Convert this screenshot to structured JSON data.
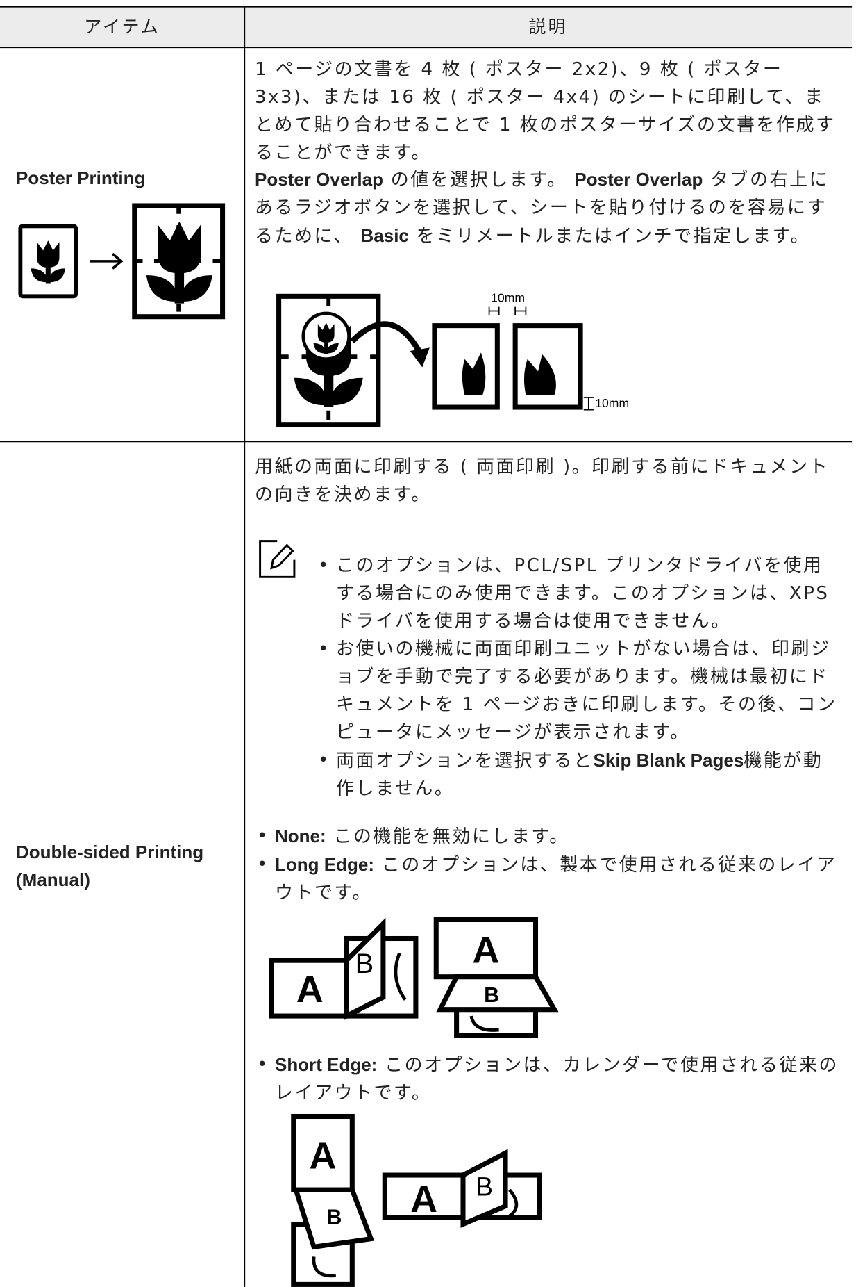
{
  "table": {
    "headers": [
      "アイテム",
      "説明"
    ],
    "rows": [
      {
        "item": "Poster Printing",
        "description": [
          [
            {
              "text": "1 ページの文書を 4 枚 ( ポスター 2x2)、9 枚 ( ポスター 3x3)、または 16 枚 ( ポスター 4x4) のシートに印刷して、まとめて貼り合わせることで 1 枚のポスターサイズの文書を作成することができます。",
              "bold": false
            }
          ],
          [
            {
              "text": "Poster Overlap",
              "bold": true
            },
            {
              "text": " の値を選択します。 ",
              "bold": false
            },
            {
              "text": "Poster Overlap",
              "bold": true
            },
            {
              "text": " タブの右上にあるラジオボタンを選択して、シートを貼り付けるのを容易にするために、 ",
              "bold": false
            },
            {
              "text": "Basic",
              "bold": true
            },
            {
              "text": " をミリメートルまたはインチで指定します。",
              "bold": false
            }
          ]
        ],
        "figure_labels": [
          "10mm",
          "10mm"
        ]
      },
      {
        "item": "Double-sided Printing (Manual)",
        "intro": [
          {
            "text": "用紙の両面に印刷する ( 両面印刷 )。印刷する前にドキュメントの向きを決めます。",
            "bold": false
          }
        ],
        "notes": [
          [
            {
              "text": "このオプションは、PCL/SPL プリンタドライバを使用する場合にのみ使用できます。このオプションは、XPS ドライバを使用する場合は使用できません。",
              "bold": false
            }
          ],
          [
            {
              "text": "お使いの機械に両面印刷ユニットがない場合は、印刷ジョブを手動で完了する必要があります。機械は最初にドキュメントを 1 ページおきに印刷します。その後、コンピュータにメッセージが表示されます。",
              "bold": false
            }
          ],
          [
            {
              "text": "両面オプションを選択すると",
              "bold": false
            },
            {
              "text": "Skip Blank Pages",
              "bold": true
            },
            {
              "text": "機能が動作しません。",
              "bold": false
            }
          ]
        ],
        "options": [
          [
            {
              "text": "None:",
              "bold": true
            },
            {
              "text": " この機能を無効にします。",
              "bold": false
            }
          ],
          [
            {
              "text": "Long Edge:",
              "bold": true
            },
            {
              "text": " このオプションは、製本で使用される従来のレイアウトです。",
              "bold": false
            }
          ],
          [
            {
              "text": "Short Edge:",
              "bold": true
            },
            {
              "text": " このオプションは、カレンダーで使用される従来のレイアウトです。",
              "bold": false
            }
          ]
        ],
        "long_edge_labels": [
          "A",
          "B",
          "A",
          "B"
        ],
        "short_edge_labels": [
          "A",
          "B",
          "A",
          "B"
        ]
      }
    ]
  }
}
